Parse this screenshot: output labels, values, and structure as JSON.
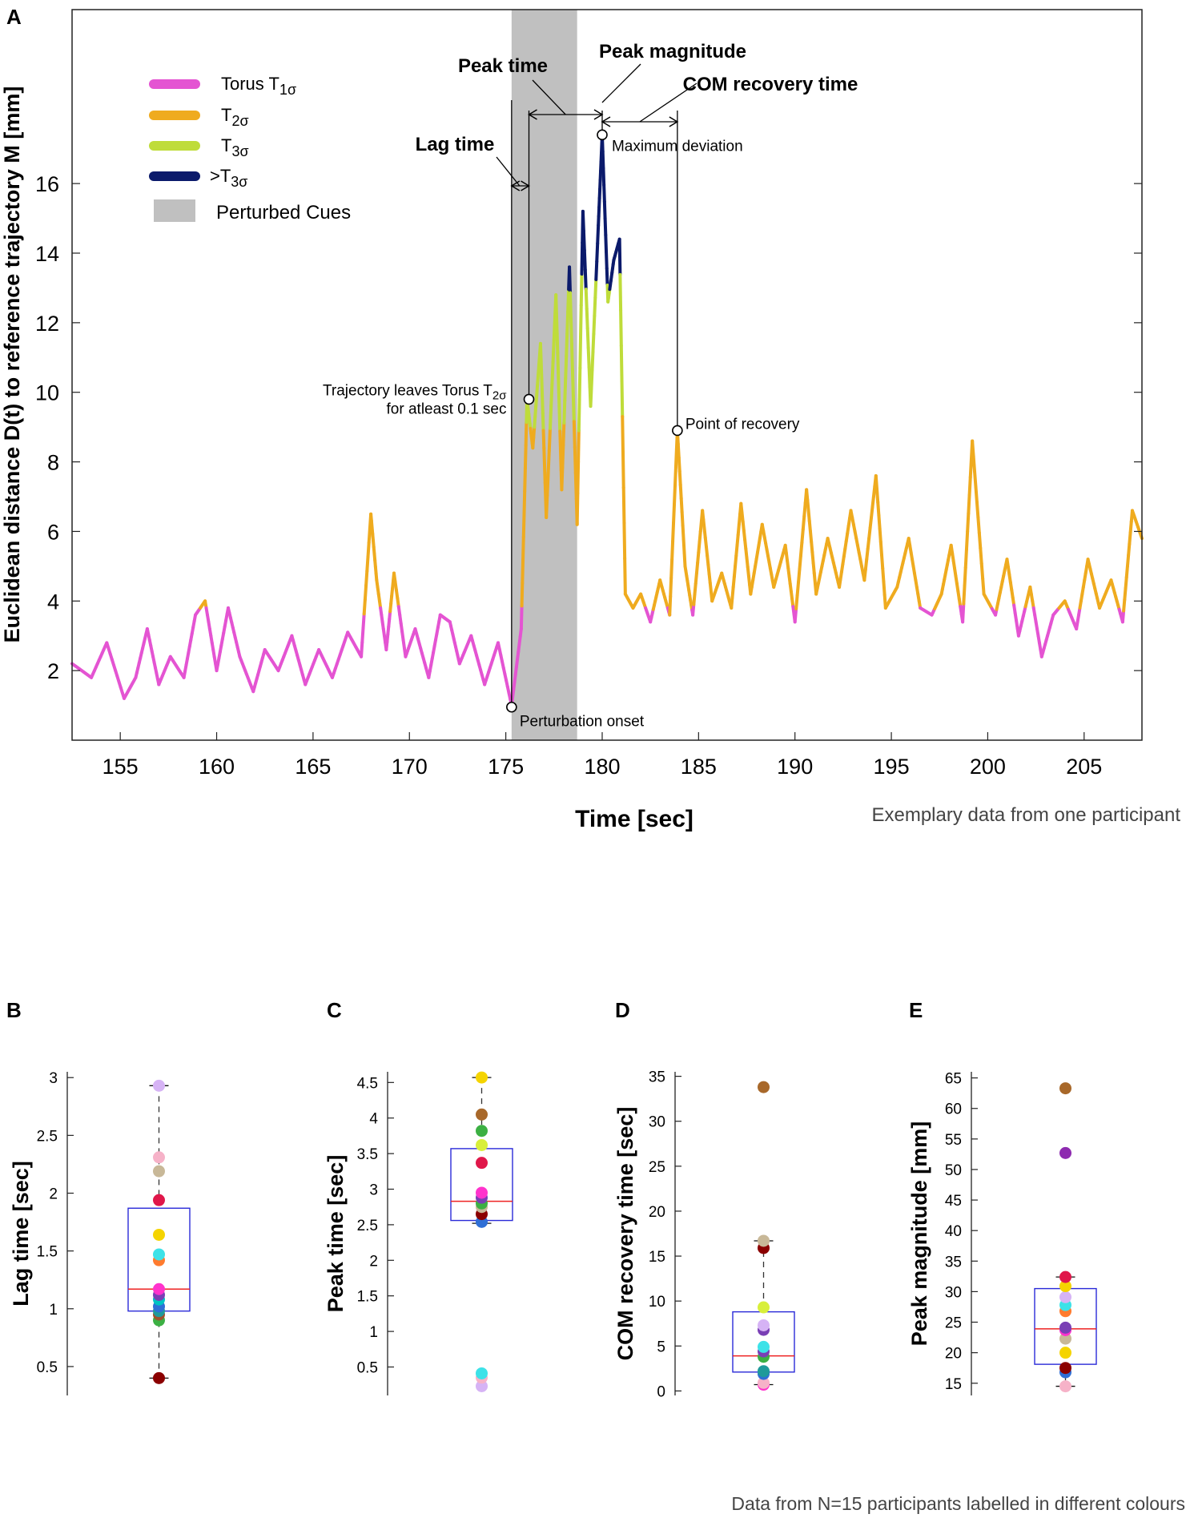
{
  "panel_letters": {
    "a": "A",
    "b": "B",
    "c": "C",
    "d": "D",
    "e": "E"
  },
  "chart_data": [
    {
      "type": "line",
      "panel": "A",
      "title": "",
      "xlabel": "Time [sec]",
      "ylabel": "Euclidean distance D(t) to reference trajectory M [mm]",
      "xlim": [
        152.5,
        208
      ],
      "ylim": [
        0,
        21
      ],
      "xticks": [
        155,
        160,
        165,
        170,
        175,
        180,
        185,
        190,
        195,
        200,
        205
      ],
      "yticks": [
        2,
        4,
        6,
        8,
        10,
        12,
        14,
        16
      ],
      "thresholds": {
        "t1": 3.8,
        "t2": 9.0,
        "t3": 13.0
      },
      "series_colors": {
        "t1": "#e454d2",
        "t2": "#efab1f",
        "t3": "#bfdc3a",
        "t4": "#0b1a6b"
      },
      "x": [
        152.5,
        153.5,
        154.3,
        155.2,
        155.8,
        156.4,
        157.0,
        157.6,
        158.3,
        158.9,
        159.4,
        160.0,
        160.6,
        161.2,
        161.9,
        162.5,
        163.2,
        163.9,
        164.6,
        165.3,
        166.0,
        166.8,
        167.5,
        168.0,
        168.3,
        168.8,
        169.2,
        169.8,
        170.3,
        171.0,
        171.6,
        172.1,
        172.6,
        173.2,
        173.9,
        174.6,
        175.3,
        175.8,
        176.1,
        176.4,
        176.8,
        177.1,
        177.6,
        177.9,
        178.3,
        178.7,
        179.0,
        179.4,
        179.8,
        180.0,
        180.3,
        180.6,
        180.9,
        181.2,
        181.6,
        182.0,
        182.5,
        183.0,
        183.5,
        183.9,
        184.3,
        184.7,
        185.2,
        185.7,
        186.2,
        186.7,
        187.2,
        187.7,
        188.3,
        188.9,
        189.5,
        190.0,
        190.6,
        191.1,
        191.7,
        192.3,
        192.9,
        193.6,
        194.2,
        194.7,
        195.3,
        195.9,
        196.5,
        197.1,
        197.6,
        198.1,
        198.7,
        199.2,
        199.8,
        200.4,
        201.0,
        201.6,
        202.2,
        202.8,
        203.4,
        204.0,
        204.6,
        205.2,
        205.8,
        206.4,
        207.0,
        207.5,
        208.0
      ],
      "y": [
        2.2,
        1.8,
        2.8,
        1.2,
        1.8,
        3.2,
        1.6,
        2.4,
        1.8,
        3.6,
        4.0,
        2.0,
        3.8,
        2.4,
        1.4,
        2.6,
        2.0,
        3.0,
        1.6,
        2.6,
        1.8,
        3.1,
        2.4,
        6.5,
        4.6,
        2.6,
        4.8,
        2.4,
        3.2,
        1.8,
        3.6,
        3.4,
        2.2,
        3.0,
        1.6,
        2.8,
        1.0,
        3.2,
        9.8,
        8.4,
        11.4,
        6.4,
        12.8,
        7.2,
        13.6,
        6.2,
        15.2,
        9.6,
        14.8,
        17.4,
        12.6,
        13.8,
        14.4,
        4.2,
        3.8,
        4.2,
        3.4,
        4.6,
        3.6,
        8.9,
        5.0,
        3.6,
        6.6,
        4.0,
        4.8,
        3.8,
        6.8,
        4.2,
        6.2,
        4.4,
        5.6,
        3.4,
        7.2,
        4.2,
        5.8,
        4.4,
        6.6,
        4.6,
        7.6,
        3.8,
        4.4,
        5.8,
        3.8,
        3.6,
        4.2,
        5.6,
        3.4,
        8.6,
        4.2,
        3.6,
        5.2,
        3.0,
        4.4,
        2.4,
        3.6,
        4.0,
        3.2,
        5.2,
        3.8,
        4.6,
        3.4,
        6.6,
        5.8
      ],
      "shaded_region": {
        "x0": 175.3,
        "x1": 178.7,
        "label": "Perturbed Cues"
      },
      "legend": [
        "Torus T",
        "T",
        "T",
        ">T",
        "Perturbed Cues"
      ],
      "legend_subscripts": [
        "1σ",
        "2σ",
        "3σ",
        "3σ"
      ],
      "markers": [
        {
          "x": 175.3,
          "y": 0.95,
          "label": "Perturbation onset"
        },
        {
          "x": 176.2,
          "y": 9.8,
          "label_line1": "Trajectory leaves Torus T",
          "label_sub": "2σ",
          "label_line2": "for atleast 0.1 sec"
        },
        {
          "x": 180.0,
          "y": 17.4,
          "label": "Maximum deviation"
        },
        {
          "x": 183.9,
          "y": 8.9,
          "label": "Point of recovery"
        }
      ],
      "annotations": {
        "lag": "Lag time",
        "peak_time": "Peak time",
        "peak_magnitude": "Peak magnitude",
        "recovery": "COM recovery time"
      },
      "caption": "Exemplary data from one participant"
    },
    {
      "type": "box",
      "panel": "B",
      "ylabel": "Lag time [sec]",
      "ylim": [
        0.25,
        3.05
      ],
      "yticks": [
        0.5,
        1,
        1.5,
        2,
        2.5,
        3
      ],
      "ytick_labels": [
        "0.5",
        "1",
        "1.5",
        "2",
        "2.5",
        "3"
      ],
      "box": {
        "q1": 0.98,
        "median": 1.17,
        "q3": 1.87,
        "whisker_low": 0.4,
        "whisker_high": 2.93
      },
      "points": [
        0.4,
        0.9,
        0.95,
        0.98,
        1.02,
        1.08,
        1.12,
        1.17,
        1.42,
        1.47,
        1.64,
        1.94,
        2.19,
        2.31,
        2.93
      ],
      "point_colors": [
        "#8b0000",
        "#3cb043",
        "#a0522d",
        "#1f9a9a",
        "#2f6fd6",
        "#00c3c3",
        "#7a3fb5",
        "#ff33cc",
        "#ff7b2e",
        "#3de2e8",
        "#f5d400",
        "#e0174a",
        "#c8b898",
        "#f6b2c8",
        "#d6b3f5"
      ]
    },
    {
      "type": "box",
      "panel": "C",
      "ylabel": "Peak time [sec]",
      "ylim": [
        0.1,
        4.65
      ],
      "yticks": [
        0.5,
        1,
        1.5,
        2,
        2.5,
        3,
        3.5,
        4,
        4.5
      ],
      "ytick_labels": [
        "0.5",
        "1",
        "1.5",
        "2",
        "2.5",
        "3",
        "3.5",
        "4",
        "4.5"
      ],
      "box": {
        "q1": 2.56,
        "median": 2.83,
        "q3": 3.57,
        "whisker_low": 2.52,
        "whisker_high": 4.57
      },
      "points": [
        0.23,
        0.35,
        0.41,
        2.54,
        2.65,
        2.75,
        2.8,
        2.88,
        2.95,
        3.37,
        3.62,
        3.82,
        4.05,
        4.57
      ],
      "point_colors": [
        "#d6b3f5",
        "#f6b2c8",
        "#3de2e8",
        "#2f6fd6",
        "#8b0000",
        "#c8b898",
        "#3cb043",
        "#7a3fb5",
        "#ff33cc",
        "#e0174a",
        "#d8ef3a",
        "#3cb043",
        "#a8682a",
        "#f5d400"
      ]
    },
    {
      "type": "box",
      "panel": "D",
      "ylabel": "COM recovery time [sec]",
      "ylim": [
        -0.5,
        35.5
      ],
      "yticks": [
        0,
        5,
        10,
        15,
        20,
        25,
        30,
        35
      ],
      "ytick_labels": [
        "0",
        "5",
        "10",
        "15",
        "20",
        "25",
        "30",
        "35"
      ],
      "box": {
        "q1": 2.1,
        "median": 3.9,
        "q3": 8.8,
        "whisker_low": 0.7,
        "whisker_high": 16.7
      },
      "points": [
        0.7,
        0.9,
        1.9,
        2.2,
        3.8,
        4.4,
        4.9,
        6.8,
        7.3,
        9.3,
        15.9,
        16.7,
        33.8
      ],
      "point_colors": [
        "#ff33cc",
        "#f6b2c8",
        "#2f6fd6",
        "#1f9a9a",
        "#3cb043",
        "#7a3fb5",
        "#3de2e8",
        "#7a3fb5",
        "#d6b3f5",
        "#d8ef3a",
        "#8b0000",
        "#c8b898",
        "#a8682a"
      ]
    },
    {
      "type": "box",
      "panel": "E",
      "ylabel": "Peak magnitude [mm]",
      "ylim": [
        13,
        66
      ],
      "yticks": [
        15,
        20,
        25,
        30,
        35,
        40,
        45,
        50,
        55,
        60,
        65
      ],
      "ytick_labels": [
        "15",
        "20",
        "25",
        "30",
        "35",
        "40",
        "45",
        "50",
        "55",
        "60",
        "65"
      ],
      "box": {
        "q1": 18.1,
        "median": 23.9,
        "q3": 30.5,
        "whisker_low": 14.5,
        "whisker_high": 32.4
      },
      "points": [
        14.5,
        16.8,
        17.5,
        20.0,
        22.3,
        23.7,
        24.1,
        26.8,
        27.8,
        29.1,
        30.9,
        32.4,
        52.7,
        63.3
      ],
      "point_colors": [
        "#f6b2c8",
        "#2f6fd6",
        "#8b0000",
        "#f5d400",
        "#c8b898",
        "#ff33cc",
        "#7a3fb5",
        "#ff7b2e",
        "#3de2e8",
        "#d6b3f5",
        "#f5d400",
        "#e0174a",
        "#8e2bb0",
        "#a8682a"
      ]
    }
  ],
  "footer": {
    "caption": "Data from N=15 participants labelled in different colours"
  }
}
